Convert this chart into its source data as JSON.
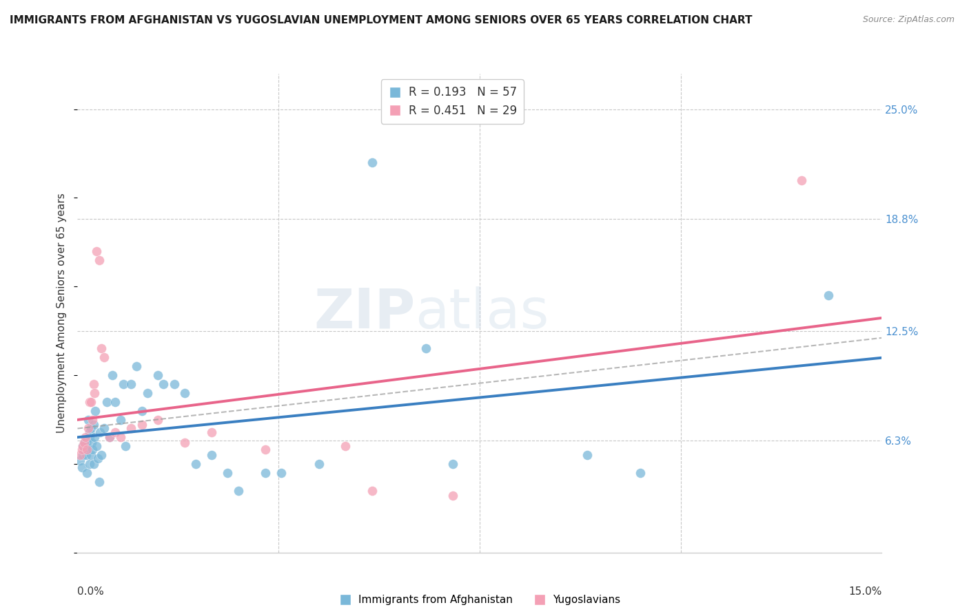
{
  "title": "IMMIGRANTS FROM AFGHANISTAN VS YUGOSLAVIAN UNEMPLOYMENT AMONG SENIORS OVER 65 YEARS CORRELATION CHART",
  "source": "Source: ZipAtlas.com",
  "ylabel": "Unemployment Among Seniors over 65 years",
  "ytick_values": [
    6.3,
    12.5,
    18.8,
    25.0
  ],
  "xlim": [
    0.0,
    15.0
  ],
  "ylim": [
    0.0,
    27.0
  ],
  "afghanistan_R": 0.193,
  "afghanistan_N": 57,
  "yugoslavian_R": 0.451,
  "yugoslavian_N": 29,
  "afghanistan_color": "#7ab8d9",
  "yugoslavian_color": "#f4a0b5",
  "afghanistan_line_color": "#3a7fc1",
  "yugoslavian_line_color": "#e8648a",
  "watermark_zip": "ZIP",
  "watermark_atlas": "atlas",
  "legend_label_1": "Immigrants from Afghanistan",
  "legend_label_2": "Yugoslavians",
  "af_x": [
    0.05,
    0.08,
    0.1,
    0.1,
    0.12,
    0.13,
    0.15,
    0.16,
    0.17,
    0.18,
    0.2,
    0.2,
    0.22,
    0.22,
    0.23,
    0.25,
    0.25,
    0.27,
    0.28,
    0.3,
    0.3,
    0.32,
    0.33,
    0.35,
    0.38,
    0.4,
    0.42,
    0.45,
    0.5,
    0.55,
    0.6,
    0.65,
    0.7,
    0.8,
    0.85,
    0.9,
    1.0,
    1.1,
    1.2,
    1.3,
    1.5,
    1.6,
    1.8,
    2.0,
    2.2,
    2.5,
    2.8,
    3.0,
    3.5,
    3.8,
    4.5,
    5.5,
    6.5,
    7.0,
    9.5,
    10.5,
    14.0
  ],
  "af_y": [
    5.2,
    4.8,
    5.5,
    6.0,
    5.8,
    6.2,
    6.0,
    5.5,
    4.5,
    6.3,
    5.9,
    7.5,
    6.8,
    5.0,
    6.5,
    7.0,
    5.5,
    6.2,
    5.8,
    7.2,
    5.0,
    6.5,
    8.0,
    6.0,
    5.3,
    4.0,
    6.8,
    5.5,
    7.0,
    8.5,
    6.5,
    10.0,
    8.5,
    7.5,
    9.5,
    6.0,
    9.5,
    10.5,
    8.0,
    9.0,
    10.0,
    9.5,
    9.5,
    9.0,
    5.0,
    5.5,
    4.5,
    3.5,
    4.5,
    4.5,
    5.0,
    22.0,
    11.5,
    5.0,
    5.5,
    4.5,
    14.5
  ],
  "yu_x": [
    0.05,
    0.08,
    0.1,
    0.12,
    0.15,
    0.18,
    0.2,
    0.22,
    0.25,
    0.28,
    0.3,
    0.32,
    0.35,
    0.4,
    0.45,
    0.5,
    0.6,
    0.7,
    0.8,
    1.0,
    1.2,
    1.5,
    2.0,
    2.5,
    3.5,
    5.0,
    5.5,
    7.0,
    13.5
  ],
  "yu_y": [
    5.5,
    5.8,
    6.0,
    6.2,
    6.5,
    5.8,
    7.0,
    8.5,
    8.5,
    7.5,
    9.5,
    9.0,
    17.0,
    16.5,
    11.5,
    11.0,
    6.5,
    6.8,
    6.5,
    7.0,
    7.2,
    7.5,
    6.2,
    6.8,
    5.8,
    6.0,
    3.5,
    3.2,
    21.0
  ]
}
